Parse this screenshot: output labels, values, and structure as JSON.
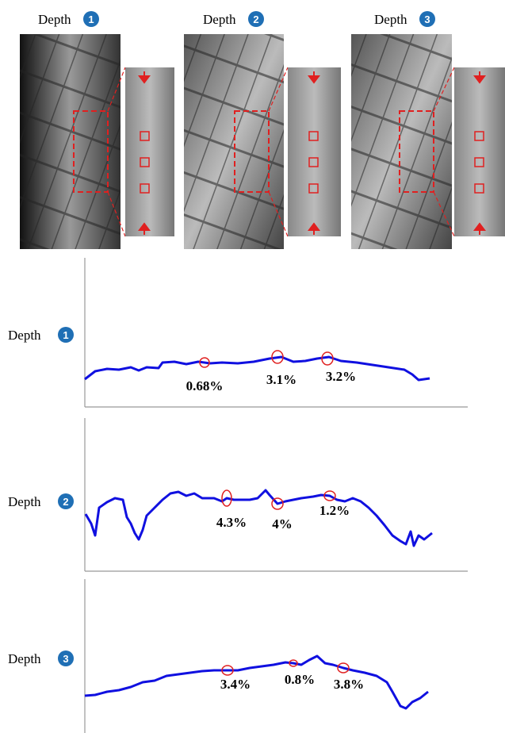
{
  "images": [
    {
      "label": "Depth",
      "badge": "1"
    },
    {
      "label": "Depth",
      "badge": "2"
    },
    {
      "label": "Depth",
      "badge": "3"
    }
  ],
  "profiles": [
    {
      "label": "Depth",
      "badge": "1",
      "annotations": [
        "0.68%",
        "3.1%",
        "3.2%"
      ]
    },
    {
      "label": "Depth",
      "badge": "2",
      "annotations": [
        "4.3%",
        "4%",
        "1.2%"
      ]
    },
    {
      "label": "Depth",
      "badge": "3",
      "annotations": [
        "3.4%",
        "0.8%",
        "3.8%"
      ]
    }
  ]
}
